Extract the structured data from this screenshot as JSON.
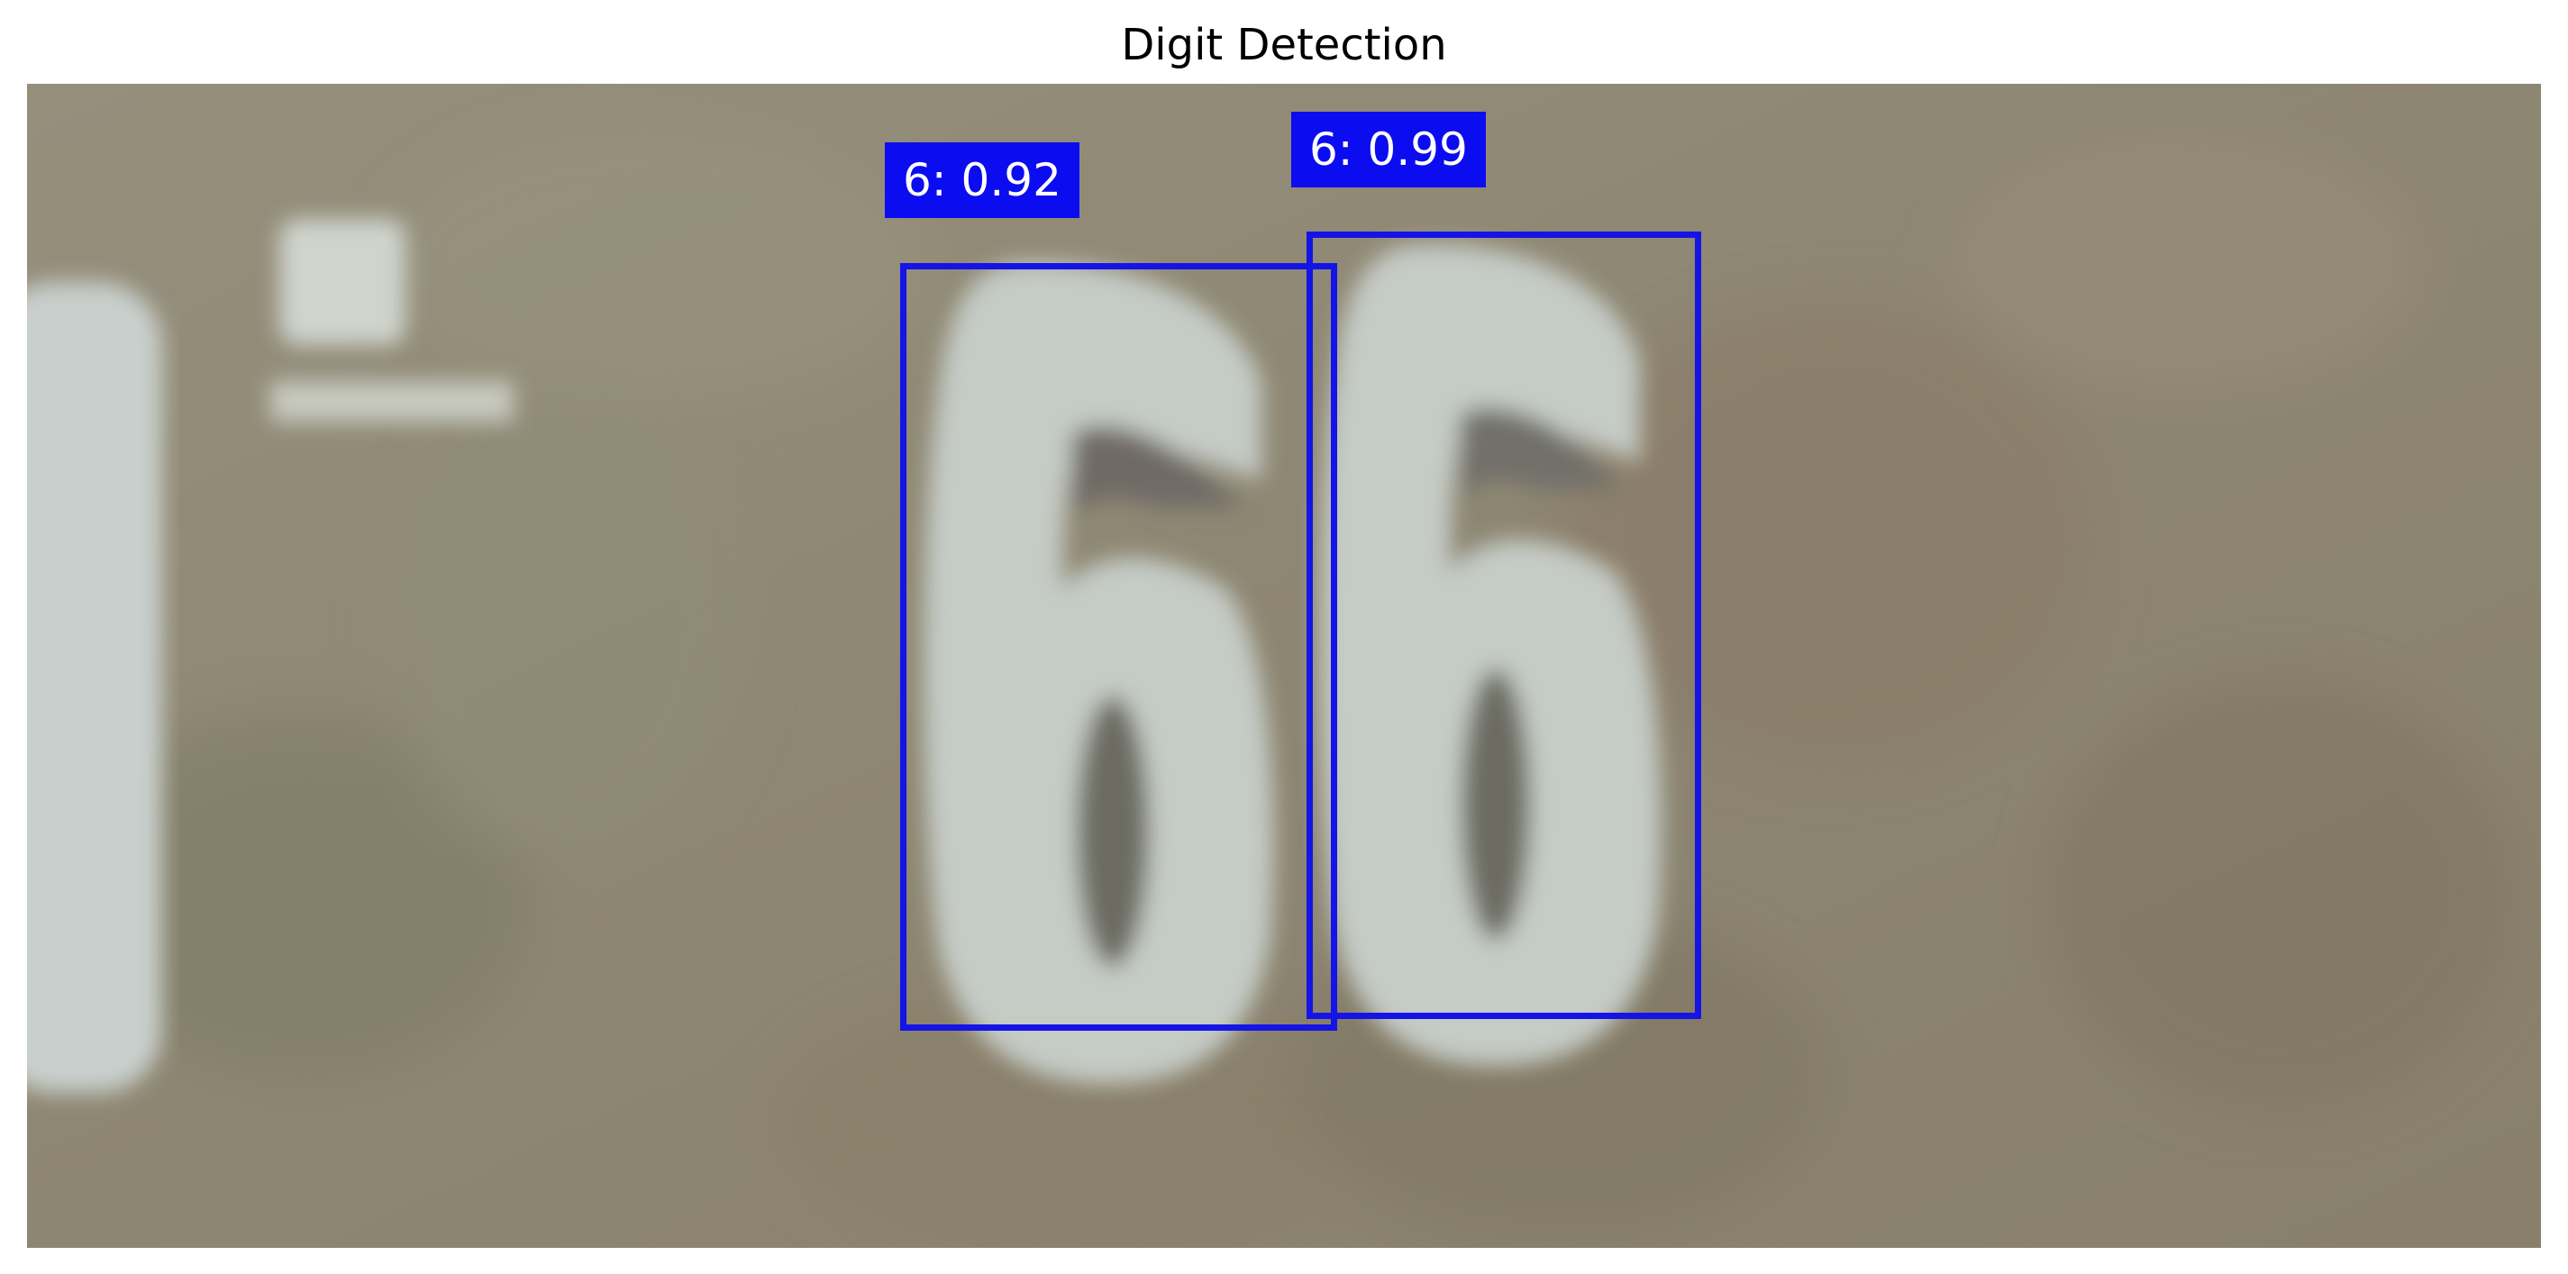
{
  "title": "Digit Detection",
  "colors": {
    "box": "#1414e6",
    "label_bg": "#0c0cf0",
    "label_text": "#ffffff"
  },
  "detections": [
    {
      "label": "6: 0.92",
      "digit": "6",
      "confidence": 0.92
    },
    {
      "label": "6: 0.99",
      "digit": "6",
      "confidence": 0.99
    }
  ]
}
